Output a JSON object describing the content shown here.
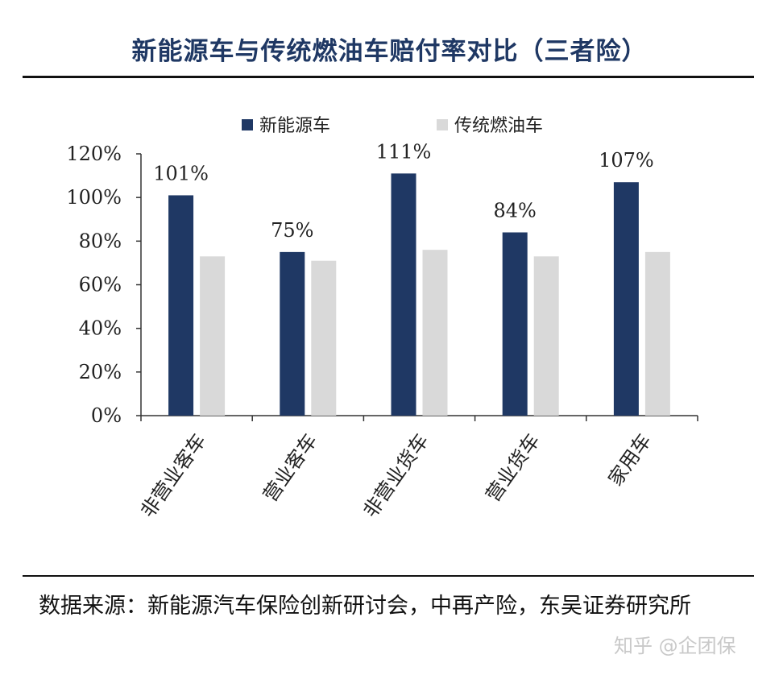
{
  "title": "新能源车与传统燃油车赔付率对比（三者险）",
  "source": "数据来源：新能源汽车保险创新研讨会，中再产险，东吴证券研究所",
  "watermark": "知乎 @企团保",
  "colors": {
    "series_new_energy": "#1f3864",
    "series_fuel": "#d9d9d9",
    "title": "#1f3864"
  },
  "chart_data": {
    "type": "bar",
    "title": "新能源车与传统燃油车赔付率对比（三者险）",
    "xlabel": "",
    "ylabel": "",
    "categories": [
      "非营业客车",
      "营业客车",
      "非营业货车",
      "营业货车",
      "家用车"
    ],
    "series": [
      {
        "name": "新能源车",
        "values": [
          101,
          75,
          111,
          84,
          107
        ],
        "labels": [
          "101%",
          "75%",
          "111%",
          "84%",
          "107%"
        ]
      },
      {
        "name": "传统燃油车",
        "values": [
          73,
          71,
          76,
          73,
          75
        ]
      }
    ],
    "ylim": [
      0,
      120
    ],
    "yticks": [
      "0%",
      "20%",
      "40%",
      "60%",
      "80%",
      "100%",
      "120%"
    ],
    "legend": "top-center",
    "grid": false
  }
}
